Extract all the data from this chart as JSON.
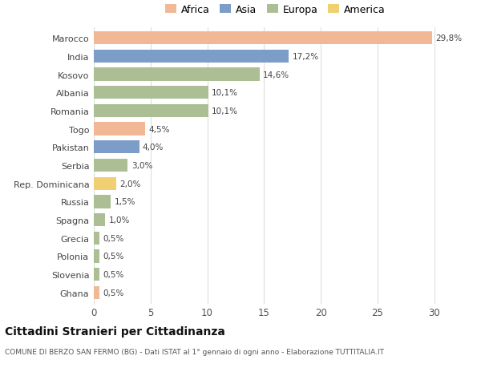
{
  "countries": [
    "Marocco",
    "India",
    "Kosovo",
    "Albania",
    "Romania",
    "Togo",
    "Pakistan",
    "Serbia",
    "Rep. Dominicana",
    "Russia",
    "Spagna",
    "Grecia",
    "Polonia",
    "Slovenia",
    "Ghana"
  ],
  "values": [
    29.8,
    17.2,
    14.6,
    10.1,
    10.1,
    4.5,
    4.0,
    3.0,
    2.0,
    1.5,
    1.0,
    0.5,
    0.5,
    0.5,
    0.5
  ],
  "labels": [
    "29,8%",
    "17,2%",
    "14,6%",
    "10,1%",
    "10,1%",
    "4,5%",
    "4,0%",
    "3,0%",
    "2,0%",
    "1,5%",
    "1,0%",
    "0,5%",
    "0,5%",
    "0,5%",
    "0,5%"
  ],
  "continents": [
    "Africa",
    "Asia",
    "Europa",
    "Europa",
    "Europa",
    "Africa",
    "Asia",
    "Europa",
    "America",
    "Europa",
    "Europa",
    "Europa",
    "Europa",
    "Europa",
    "Africa"
  ],
  "colors": {
    "Africa": "#F2B896",
    "Asia": "#7B9DC8",
    "Europa": "#ABBE94",
    "America": "#F0D070"
  },
  "legend_order": [
    "Africa",
    "Asia",
    "Europa",
    "America"
  ],
  "legend_colors": [
    "#F2B896",
    "#7B9DC8",
    "#ABBE94",
    "#F0D070"
  ],
  "title": "Cittadini Stranieri per Cittadinanza",
  "subtitle": "COMUNE DI BERZO SAN FERMO (BG) - Dati ISTAT al 1° gennaio di ogni anno - Elaborazione TUTTITALIA.IT",
  "xlim": [
    0,
    32
  ],
  "xticks": [
    0,
    5,
    10,
    15,
    20,
    25,
    30
  ],
  "bg_color": "#FFFFFF",
  "grid_color": "#DDDDDD",
  "bar_height": 0.72
}
